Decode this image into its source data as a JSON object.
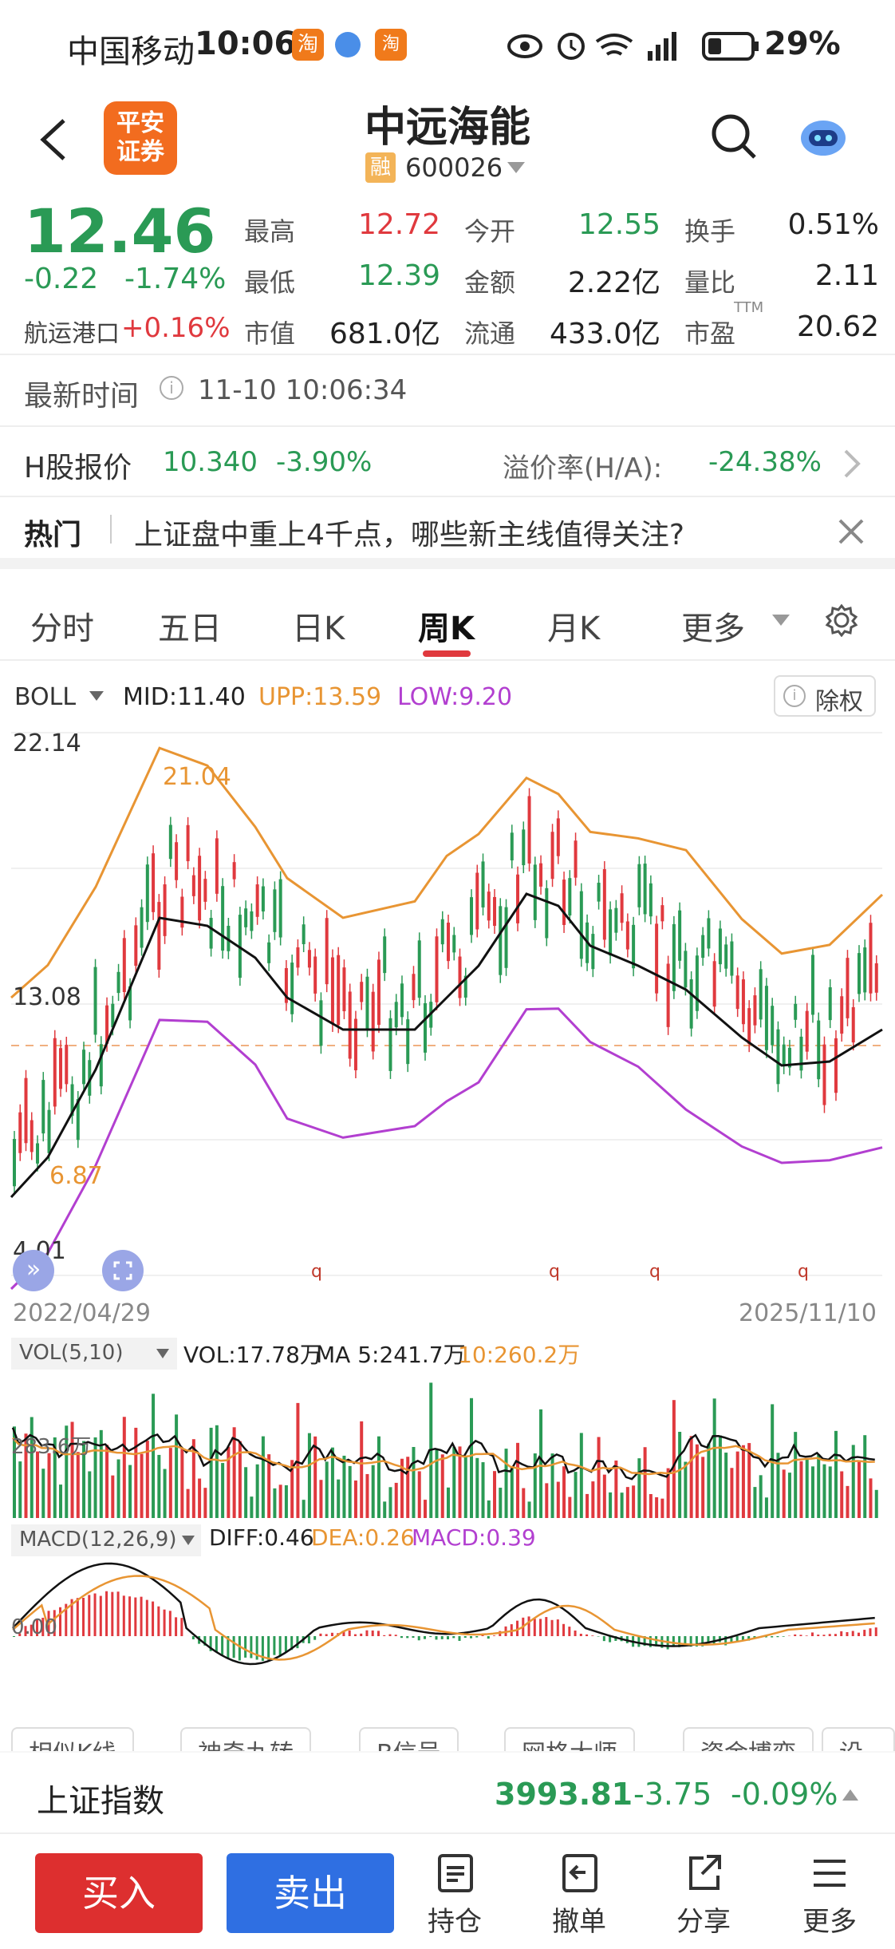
{
  "status": {
    "carrier": "中国移动",
    "time": "10:06",
    "battery": "29%"
  },
  "header": {
    "stock_name": "中远海能",
    "rong": "融",
    "code": "600026",
    "broker_logo": "平安\n证券"
  },
  "quote": {
    "price": "12.46",
    "change": "-0.22",
    "change_pct": "-1.74%",
    "sector_name": "航运港口",
    "sector_pct": "+0.16%",
    "fields": [
      {
        "label": "最高",
        "value": "12.72",
        "color": "#e0393e"
      },
      {
        "label": "今开",
        "value": "12.55",
        "color": "#2a9a55"
      },
      {
        "label": "换手",
        "value": "0.51%",
        "color": "#222"
      },
      {
        "label": "最低",
        "value": "12.39",
        "color": "#2a9a55"
      },
      {
        "label": "金额",
        "value": "2.22亿",
        "color": "#222"
      },
      {
        "label": "量比",
        "value": "2.11",
        "color": "#222"
      },
      {
        "label": "市值",
        "value": "681.0亿",
        "color": "#222"
      },
      {
        "label": "流通",
        "value": "433.0亿",
        "color": "#222"
      },
      {
        "label": "市盈",
        "value": "20.62",
        "color": "#222"
      }
    ],
    "ttm": "TTM"
  },
  "latest_time": {
    "label": "最新时间",
    "value": "11-10 10:06:34"
  },
  "hshare": {
    "label": "H股报价",
    "price": "10.340",
    "pct": "-3.90%",
    "premium_label": "溢价率(H/A):",
    "premium": "-24.38%"
  },
  "hot": {
    "label": "热门",
    "text": "上证盘中重上4千点，哪些新主线值得关注?"
  },
  "tabs": [
    "分时",
    "五日",
    "日K",
    "周K",
    "月K",
    "更多"
  ],
  "active_tab": "周K",
  "boll": {
    "name": "BOLL",
    "mid": "MID:11.40",
    "upp": "UPP:13.59",
    "low": "LOW:9.20",
    "fuquan": "除权"
  },
  "chart_data": {
    "type": "candlestick",
    "y_top_label": "22.14",
    "y_mid_label": "13.08",
    "y_bottom_label": "4.01",
    "high_marker": "21.04",
    "low_marker": "6.87",
    "x_start": "2022/04/29",
    "x_end": "2025/11/10",
    "vol_legend": {
      "name": "VOL(5,10)",
      "vol": "VOL:17.78万",
      "ma5": "MA 5:241.7万",
      "ma10": "10:260.2万"
    },
    "vol_axis_label": "283.6万",
    "macd_legend": {
      "name": "MACD(12,26,9)",
      "diff": "DIFF:0.46",
      "dea": "DEA:0.26",
      "macd": "MACD:0.39"
    },
    "macd_axis_label": "0.00"
  },
  "chips": [
    "相似K线",
    "神奇九转",
    "B信号",
    "网格大师",
    "资金博弈",
    "设置"
  ],
  "index": {
    "name": "上证指数",
    "value": "3993.81",
    "change": "-3.75",
    "pct": "-0.09%"
  },
  "bottom": {
    "buy": "买入",
    "sell": "卖出",
    "items": [
      "持仓",
      "撤单",
      "分享",
      "更多"
    ]
  }
}
